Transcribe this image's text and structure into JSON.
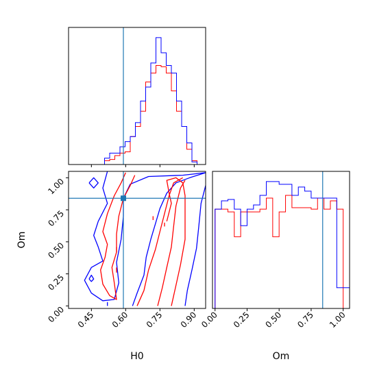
{
  "chart_data": [
    {
      "type": "histogram",
      "panel": "H0 marginal",
      "param": "H0",
      "xlim": [
        0.35,
        0.95
      ],
      "bins": [
        0.35,
        0.3725,
        0.395,
        0.4175,
        0.44,
        0.4625,
        0.485,
        0.5075,
        0.53,
        0.5525,
        0.575,
        0.5975,
        0.62,
        0.6425,
        0.665,
        0.6875,
        0.71,
        0.7325,
        0.755,
        0.7775,
        0.8,
        0.8225,
        0.845,
        0.8675,
        0.89,
        0.9125,
        0.935,
        0.95
      ],
      "series": [
        {
          "color": "#ff0000",
          "values": [
            0,
            0,
            0,
            0,
            0,
            0,
            0,
            3,
            4,
            7,
            9,
            10,
            22,
            30,
            42,
            65,
            72,
            78,
            77,
            72,
            58,
            42,
            30,
            12,
            3,
            0,
            0
          ]
        },
        {
          "color": "#0000ff",
          "values": [
            0,
            0,
            0,
            0,
            0,
            0,
            0,
            5,
            9,
            9,
            14,
            18,
            22,
            33,
            50,
            61,
            80,
            100,
            88,
            78,
            72,
            50,
            30,
            17,
            2,
            0,
            0
          ]
        }
      ],
      "truth_line": {
        "axis": "x",
        "value": 0.59,
        "color": "#1f77b4"
      }
    },
    {
      "type": "contour",
      "panel": "H0 vs Om 2D posterior",
      "xlabel": "H0",
      "ylabel": "Om",
      "xlim": [
        0.35,
        0.95
      ],
      "ylim": [
        -0.02,
        1.05
      ],
      "xticks": [
        "0.45",
        "0.60",
        "0.75",
        "0.90"
      ],
      "yticks": [
        "0.00",
        "0.25",
        "0.50",
        "0.75",
        "1.00"
      ],
      "xtick_values": [
        0.45,
        0.6,
        0.75,
        0.9
      ],
      "ytick_values": [
        0.0,
        0.25,
        0.5,
        0.75,
        1.0
      ],
      "truth_point": {
        "x": 0.59,
        "y": 0.84,
        "color": "#1f77b4"
      },
      "contours": [
        {
          "color": "#0000ff",
          "level": "outer",
          "points": [
            [
              0.52,
              1.05
            ],
            [
              0.5,
              0.92
            ],
            [
              0.52,
              0.8
            ],
            [
              0.48,
              0.66
            ],
            [
              0.46,
              0.55
            ],
            [
              0.48,
              0.46
            ],
            [
              0.5,
              0.35
            ],
            [
              0.45,
              0.3
            ],
            [
              0.42,
              0.2
            ],
            [
              0.45,
              0.1
            ],
            [
              0.5,
              0.04
            ],
            [
              0.55,
              0.05
            ],
            [
              0.57,
              0.18
            ],
            [
              0.56,
              0.34
            ],
            [
              0.58,
              0.52
            ],
            [
              0.59,
              0.7
            ],
            [
              0.59,
              0.84
            ],
            [
              0.62,
              0.95
            ],
            [
              0.7,
              1.01
            ],
            [
              0.85,
              1.02
            ],
            [
              0.95,
              1.04
            ]
          ]
        },
        {
          "color": "#0000ff",
          "level": "outer",
          "points": [
            [
              0.63,
              0.0
            ],
            [
              0.65,
              0.1
            ],
            [
              0.68,
              0.24
            ],
            [
              0.69,
              0.38
            ],
            [
              0.71,
              0.52
            ],
            [
              0.73,
              0.64
            ],
            [
              0.75,
              0.76
            ],
            [
              0.78,
              0.88
            ],
            [
              0.82,
              0.96
            ],
            [
              0.88,
              1.0
            ],
            [
              0.95,
              1.04
            ]
          ]
        },
        {
          "color": "#0000ff",
          "level": "outer",
          "points": [
            [
              0.86,
              0.0
            ],
            [
              0.87,
              0.12
            ],
            [
              0.89,
              0.28
            ],
            [
              0.91,
              0.45
            ],
            [
              0.92,
              0.62
            ],
            [
              0.93,
              0.8
            ],
            [
              0.95,
              0.94
            ]
          ]
        },
        {
          "color": "#0000ff",
          "level": "island",
          "points": [
            [
              0.44,
              0.96
            ],
            [
              0.46,
              1.0
            ],
            [
              0.48,
              0.96
            ],
            [
              0.46,
              0.92
            ],
            [
              0.44,
              0.96
            ]
          ]
        },
        {
          "color": "#0000ff",
          "level": "island",
          "points": [
            [
              0.44,
              0.21
            ],
            [
              0.45,
              0.24
            ],
            [
              0.46,
              0.21
            ],
            [
              0.45,
              0.19
            ],
            [
              0.44,
              0.21
            ]
          ]
        },
        {
          "color": "#0000ff",
          "level": "island",
          "points": [
            [
              0.52,
              0.0
            ],
            [
              0.52,
              0.03
            ]
          ]
        },
        {
          "color": "#ff0000",
          "level": "inner",
          "points": [
            [
              0.6,
              1.04
            ],
            [
              0.58,
              0.96
            ],
            [
              0.55,
              0.86
            ],
            [
              0.52,
              0.72
            ],
            [
              0.5,
              0.58
            ],
            [
              0.52,
              0.48
            ],
            [
              0.51,
              0.38
            ],
            [
              0.49,
              0.28
            ],
            [
              0.5,
              0.17
            ],
            [
              0.53,
              0.08
            ],
            [
              0.56,
              0.05
            ],
            [
              0.55,
              0.18
            ],
            [
              0.54,
              0.3
            ],
            [
              0.56,
              0.42
            ],
            [
              0.56,
              0.56
            ],
            [
              0.57,
              0.7
            ],
            [
              0.59,
              0.84
            ],
            [
              0.62,
              0.94
            ],
            [
              0.64,
              1.02
            ]
          ]
        },
        {
          "color": "#ff0000",
          "level": "inner",
          "points": [
            [
              0.65,
              0.0
            ],
            [
              0.68,
              0.12
            ],
            [
              0.7,
              0.28
            ],
            [
              0.73,
              0.44
            ],
            [
              0.75,
              0.58
            ],
            [
              0.77,
              0.72
            ],
            [
              0.79,
              0.86
            ],
            [
              0.81,
              0.96
            ],
            [
              0.85,
              1.0
            ]
          ]
        },
        {
          "color": "#ff0000",
          "level": "inner",
          "points": [
            [
              0.74,
              0.0
            ],
            [
              0.76,
              0.14
            ],
            [
              0.78,
              0.3
            ],
            [
              0.8,
              0.46
            ],
            [
              0.81,
              0.62
            ],
            [
              0.82,
              0.78
            ],
            [
              0.84,
              0.92
            ],
            [
              0.86,
              0.98
            ]
          ]
        },
        {
          "color": "#ff0000",
          "level": "inner",
          "points": [
            [
              0.8,
              0.0
            ],
            [
              0.82,
              0.16
            ],
            [
              0.84,
              0.32
            ],
            [
              0.86,
              0.52
            ],
            [
              0.86,
              0.72
            ],
            [
              0.86,
              0.86
            ],
            [
              0.85,
              0.96
            ],
            [
              0.82,
              1.0
            ],
            [
              0.78,
              0.98
            ],
            [
              0.79,
              0.88
            ],
            [
              0.8,
              0.8
            ],
            [
              0.78,
              0.66
            ]
          ]
        },
        {
          "color": "#ff0000",
          "level": "island",
          "points": [
            [
              0.56,
              0.42
            ],
            [
              0.56,
              0.46
            ]
          ]
        },
        {
          "color": "#ff0000",
          "level": "island",
          "points": [
            [
              0.56,
              0.26
            ],
            [
              0.56,
              0.3
            ]
          ]
        },
        {
          "color": "#ff0000",
          "level": "island",
          "points": [
            [
              0.72,
              0.67
            ],
            [
              0.72,
              0.7
            ]
          ]
        },
        {
          "color": "#ff0000",
          "level": "island",
          "points": [
            [
              0.77,
              0.62
            ],
            [
              0.77,
              0.65
            ]
          ]
        }
      ]
    },
    {
      "type": "histogram",
      "panel": "Om marginal",
      "param": "Om",
      "xlabel": "Om",
      "xlim": [
        -0.02,
        1.05
      ],
      "xticks": [
        "0.00",
        "0.25",
        "0.50",
        "0.75",
        "1.00"
      ],
      "xtick_values": [
        0.0,
        0.25,
        0.5,
        0.75,
        1.0
      ],
      "bins": [
        -0.02,
        0.0,
        0.05,
        0.1,
        0.15,
        0.2,
        0.25,
        0.3,
        0.35,
        0.4,
        0.45,
        0.5,
        0.55,
        0.6,
        0.65,
        0.7,
        0.75,
        0.8,
        0.85,
        0.9,
        0.95,
        1.0,
        1.05
      ],
      "series": [
        {
          "color": "#ff0000",
          "values": [
            0,
            72,
            72,
            70,
            52,
            70,
            70,
            70,
            72,
            80,
            52,
            70,
            82,
            73,
            73,
            73,
            72,
            80,
            72,
            78,
            72,
            0
          ]
        },
        {
          "color": "#0000ff",
          "values": [
            0,
            72,
            78,
            79,
            72,
            60,
            72,
            75,
            82,
            92,
            92,
            90,
            90,
            82,
            88,
            85,
            80,
            80,
            80,
            80,
            15,
            15
          ]
        }
      ],
      "truth_line": {
        "axis": "x",
        "value": 0.84,
        "color": "#1f77b4"
      }
    }
  ]
}
